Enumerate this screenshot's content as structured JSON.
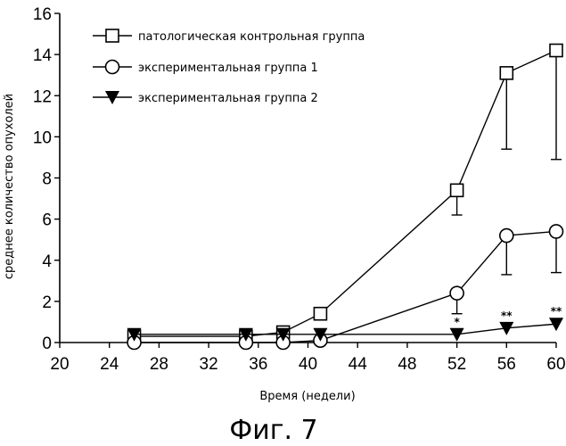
{
  "chart_data": {
    "type": "line",
    "ylabel": "среднее количество опухолей",
    "xlabel": "Время (недели)",
    "xlim": [
      20,
      60
    ],
    "ylim": [
      0,
      16
    ],
    "xticks": [
      20,
      24,
      28,
      32,
      36,
      40,
      44,
      48,
      52,
      56,
      60
    ],
    "yticks": [
      0,
      2,
      4,
      6,
      8,
      10,
      12,
      14,
      16
    ],
    "legend_position": "top-right",
    "grid": false,
    "series": [
      {
        "name": "патологическая контрольная группа",
        "marker": "square",
        "x": [
          26,
          35,
          38,
          41,
          52,
          56,
          60
        ],
        "y": [
          0.3,
          0.3,
          0.5,
          1.4,
          7.4,
          13.1,
          14.2
        ],
        "error_low": [
          null,
          null,
          null,
          null,
          6.2,
          9.4,
          8.9
        ]
      },
      {
        "name": "экспериментальная группа 1",
        "marker": "circle",
        "x": [
          26,
          35,
          38,
          41,
          52,
          56,
          60
        ],
        "y": [
          0.0,
          0.0,
          0.0,
          0.1,
          2.4,
          5.2,
          5.4
        ],
        "error_low": [
          null,
          null,
          null,
          null,
          1.4,
          3.3,
          3.4
        ]
      },
      {
        "name": "экспериментальная группа 2",
        "marker": "triangle-down",
        "x": [
          26,
          35,
          38,
          41,
          52,
          56,
          60
        ],
        "y": [
          0.4,
          0.4,
          0.4,
          0.4,
          0.4,
          0.7,
          0.9
        ],
        "error_low": [
          null,
          null,
          null,
          null,
          null,
          null,
          null
        ]
      }
    ],
    "annotations": [
      {
        "x": 52,
        "text": "*"
      },
      {
        "x": 56,
        "text": "**"
      },
      {
        "x": 60,
        "text": "**"
      }
    ]
  },
  "caption": "Фиг. 7"
}
